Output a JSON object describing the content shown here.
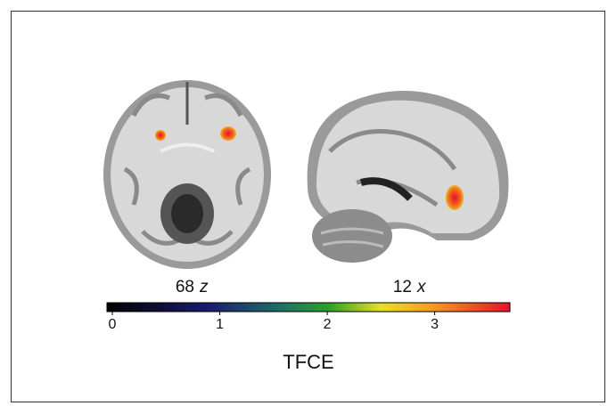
{
  "panels": [
    {
      "number": "68",
      "axis": "z"
    },
    {
      "number": "12",
      "axis": "x"
    }
  ],
  "colorbar": {
    "range": [
      0,
      3.75
    ],
    "ticks": [
      0,
      1,
      2,
      3
    ],
    "label": "TFCE"
  }
}
